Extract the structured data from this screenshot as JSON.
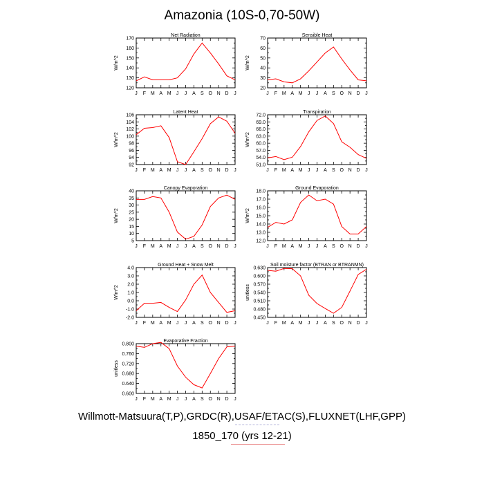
{
  "title": "Amazonia (10S-0,70-50W)",
  "footer": {
    "line1": "Willmott-Matsuura(T,P),GRDC(R),USAF/ETAC(S),FLUXNET(LHF,GPP)",
    "line2": "1850_170 (yrs 12-21)"
  },
  "style": {
    "line_color": "#ff0000",
    "axis_color": "#000000"
  },
  "chart_data": [
    {
      "type": "line",
      "title": "Net Radiation",
      "ylabel": "W/m^2",
      "categories": [
        "J",
        "F",
        "M",
        "A",
        "M",
        "J",
        "J",
        "A",
        "S",
        "O",
        "N",
        "D",
        "J"
      ],
      "ylim": [
        120,
        170
      ],
      "yticks": [
        120,
        125,
        130,
        135,
        140,
        145,
        150,
        155,
        160,
        165,
        170
      ],
      "yticklabels": [
        "120",
        "",
        "130",
        "",
        "140",
        "",
        "150",
        "",
        "160",
        "",
        "170"
      ],
      "values": [
        127,
        131,
        128,
        128,
        128,
        130,
        139,
        154,
        165,
        155,
        144,
        132,
        128
      ]
    },
    {
      "type": "line",
      "title": "Sensible Heat",
      "ylabel": "W/m^2",
      "categories": [
        "J",
        "F",
        "M",
        "A",
        "M",
        "J",
        "J",
        "A",
        "S",
        "O",
        "N",
        "D",
        "J"
      ],
      "ylim": [
        20,
        70
      ],
      "yticks": [
        20,
        25,
        30,
        35,
        40,
        45,
        50,
        55,
        60,
        65,
        70
      ],
      "yticklabels": [
        "20",
        "",
        "30",
        "",
        "40",
        "",
        "50",
        "",
        "60",
        "",
        "70"
      ],
      "values": [
        28,
        29,
        26,
        25,
        29,
        37,
        46,
        55,
        61,
        49,
        38,
        28,
        27
      ]
    },
    {
      "type": "line",
      "title": "Latent Heat",
      "ylabel": "W/m^2",
      "categories": [
        "J",
        "F",
        "M",
        "A",
        "M",
        "J",
        "J",
        "A",
        "S",
        "O",
        "N",
        "D",
        "J"
      ],
      "ylim": [
        92,
        106
      ],
      "yticks": [
        92,
        93,
        94,
        95,
        96,
        97,
        98,
        99,
        100,
        101,
        102,
        103,
        104,
        105,
        106
      ],
      "yticklabels": [
        "92",
        "",
        "94",
        "",
        "96",
        "",
        "98",
        "",
        "100",
        "",
        "102",
        "",
        "104",
        "",
        "106"
      ],
      "values": [
        100.4,
        102.2,
        102.4,
        102.9,
        99.6,
        92.8,
        92.0,
        95.6,
        99.3,
        103.5,
        105.4,
        104.2,
        100.8
      ]
    },
    {
      "type": "line",
      "title": "Transpiration",
      "ylabel": "W/m^2",
      "categories": [
        "J",
        "F",
        "M",
        "A",
        "M",
        "J",
        "J",
        "A",
        "S",
        "O",
        "N",
        "D",
        "J"
      ],
      "ylim": [
        51,
        72
      ],
      "yticks": [
        51,
        52.5,
        54,
        55.5,
        57,
        58.5,
        60,
        61.5,
        63,
        64.5,
        66,
        67.5,
        69,
        70.5,
        72
      ],
      "yticklabels": [
        "51.0",
        "",
        "54.0",
        "",
        "57.0",
        "",
        "60.0",
        "",
        "63.0",
        "",
        "66.0",
        "",
        "69.0",
        "",
        "72.0"
      ],
      "values": [
        53.8,
        54.4,
        53.1,
        54.1,
        58.6,
        64.8,
        69.6,
        71.5,
        68.3,
        60.6,
        58.3,
        55.2,
        53.6
      ]
    },
    {
      "type": "line",
      "title": "Canopy Evaporation",
      "ylabel": "W/m^2",
      "categories": [
        "J",
        "F",
        "M",
        "A",
        "M",
        "J",
        "J",
        "A",
        "S",
        "O",
        "N",
        "D",
        "J"
      ],
      "ylim": [
        5,
        40
      ],
      "yticks": [
        5,
        10,
        15,
        20,
        25,
        30,
        35,
        40
      ],
      "yticklabels": [
        "5",
        "10",
        "15",
        "20",
        "25",
        "30",
        "35",
        "40"
      ],
      "values": [
        34,
        34,
        36,
        35,
        25,
        11,
        6,
        8,
        16,
        29,
        35,
        37,
        34
      ]
    },
    {
      "type": "line",
      "title": "Ground Evaporation",
      "ylabel": "W/m^2",
      "categories": [
        "J",
        "F",
        "M",
        "A",
        "M",
        "J",
        "J",
        "A",
        "S",
        "O",
        "N",
        "D",
        "J"
      ],
      "ylim": [
        12,
        18
      ],
      "yticks": [
        12,
        12.5,
        13,
        13.5,
        14,
        14.5,
        15,
        15.5,
        16,
        16.5,
        17,
        17.5,
        18
      ],
      "yticklabels": [
        "12.0",
        "",
        "13.0",
        "",
        "14.0",
        "",
        "15.0",
        "",
        "16.0",
        "",
        "17.0",
        "",
        "18.0"
      ],
      "values": [
        13.6,
        14.2,
        14.0,
        14.5,
        16.6,
        17.5,
        16.8,
        17.0,
        16.4,
        13.7,
        12.8,
        12.8,
        13.7
      ]
    },
    {
      "type": "line",
      "title": "Ground Heat + Snow Melt",
      "ylabel": "W/m^2",
      "categories": [
        "J",
        "F",
        "M",
        "A",
        "M",
        "J",
        "J",
        "A",
        "S",
        "O",
        "N",
        "D",
        "J"
      ],
      "ylim": [
        -2,
        4
      ],
      "yticks": [
        -2,
        -1.5,
        -1,
        -0.5,
        0,
        0.5,
        1,
        1.5,
        2,
        2.5,
        3,
        3.5,
        4
      ],
      "yticklabels": [
        "-2.0",
        "",
        "-1.0",
        "",
        "0.0",
        "",
        "1.0",
        "",
        "2.0",
        "",
        "3.0",
        "",
        "4.0"
      ],
      "values": [
        -1.2,
        -0.3,
        -0.3,
        -0.2,
        -0.8,
        -1.3,
        0.1,
        2.0,
        3.1,
        1.0,
        -0.2,
        -1.4,
        -1.2
      ]
    },
    {
      "type": "line",
      "title": "Soil moisture factor (BTRAN or BTRANMN)",
      "ylabel": "unitless",
      "categories": [
        "J",
        "F",
        "M",
        "A",
        "M",
        "J",
        "J",
        "A",
        "S",
        "O",
        "N",
        "D",
        "J"
      ],
      "ylim": [
        0.45,
        0.63
      ],
      "yticks": [
        0.45,
        0.465,
        0.48,
        0.495,
        0.51,
        0.525,
        0.54,
        0.555,
        0.57,
        0.585,
        0.6,
        0.615,
        0.63
      ],
      "yticklabels": [
        "0.450",
        "",
        "0.480",
        "",
        "0.510",
        "",
        "0.540",
        "",
        "0.570",
        "",
        "0.600",
        "",
        "0.630"
      ],
      "values": [
        0.62,
        0.617,
        0.627,
        0.626,
        0.6,
        0.53,
        0.5,
        0.482,
        0.465,
        0.486,
        0.545,
        0.605,
        0.624
      ]
    },
    {
      "type": "line",
      "title": "Evaporative Fraction",
      "ylabel": "unitless",
      "categories": [
        "J",
        "F",
        "M",
        "A",
        "M",
        "J",
        "J",
        "A",
        "S",
        "O",
        "N",
        "D",
        "J"
      ],
      "ylim": [
        0.6,
        0.8
      ],
      "yticks": [
        0.6,
        0.62,
        0.64,
        0.66,
        0.68,
        0.7,
        0.72,
        0.74,
        0.76,
        0.78,
        0.8
      ],
      "yticklabels": [
        "0.600",
        "",
        "0.640",
        "",
        "0.680",
        "",
        "0.720",
        "",
        "0.760",
        "",
        "0.800"
      ],
      "values": [
        0.79,
        0.785,
        0.8,
        0.805,
        0.78,
        0.71,
        0.665,
        0.635,
        0.622,
        0.68,
        0.74,
        0.787,
        0.79
      ]
    }
  ]
}
